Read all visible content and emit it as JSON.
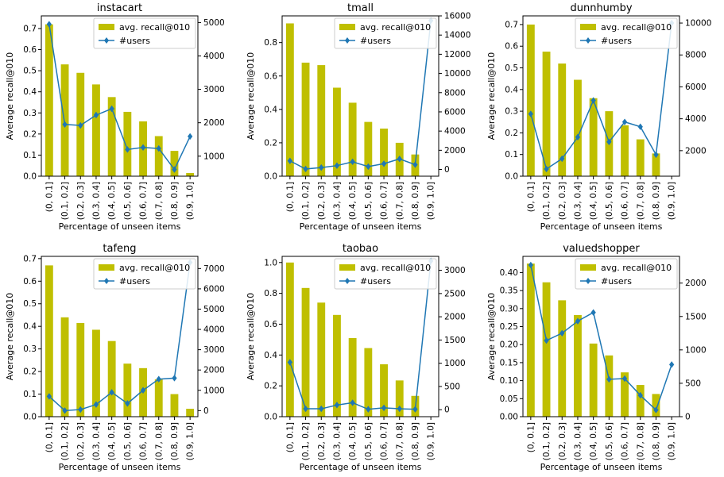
{
  "figure": {
    "xlabel": "Percentage of unseen items",
    "ylabel": "Average recall@010",
    "legend": {
      "bar_label": "avg. recall@010",
      "line_label": "#users",
      "placement": "top-right"
    },
    "colors": {
      "bar": "#bfbf00",
      "line": "#1f77b4",
      "frame": "#000000"
    }
  },
  "chart_data": [
    {
      "type": "bar",
      "title": "instacart",
      "categories": [
        "(0, 0.1]",
        "(0.1, 0.2]",
        "(0.2, 0.3]",
        "(0.3, 0.4]",
        "(0.4, 0.5]",
        "(0.5, 0.6]",
        "(0.6, 0.7]",
        "(0.7, 0.8]",
        "(0.8, 0.9]",
        "(0.9, 1.0]"
      ],
      "series": [
        {
          "name": "avg. recall@010",
          "type": "bar",
          "axis": "left",
          "values": [
            0.72,
            0.53,
            0.49,
            0.435,
            0.375,
            0.305,
            0.26,
            0.19,
            0.12,
            0.015
          ]
        },
        {
          "name": "#users",
          "type": "line",
          "axis": "right",
          "values": [
            4950,
            1950,
            1920,
            2230,
            2420,
            1200,
            1260,
            1230,
            600,
            1590
          ]
        }
      ],
      "ylim": [
        0,
        0.76
      ],
      "yticks": [
        0,
        0.1,
        0.2,
        0.3,
        0.4,
        0.5,
        0.6,
        0.7
      ],
      "ytick_labels": [
        "0.0",
        "0.1",
        "0.2",
        "0.3",
        "0.4",
        "0.5",
        "0.6",
        "0.7"
      ],
      "y2lim": [
        400,
        5200
      ],
      "y2ticks": [
        1000,
        2000,
        3000,
        4000,
        5000
      ],
      "y2tick_labels": [
        "1000",
        "2000",
        "3000",
        "4000",
        "5000"
      ]
    },
    {
      "type": "bar",
      "title": "tmall",
      "categories": [
        "(0, 0.1]",
        "(0.1, 0.2]",
        "(0.2, 0.3]",
        "(0.3, 0.4]",
        "(0.4, 0.5]",
        "(0.5, 0.6]",
        "(0.6, 0.7]",
        "(0.7, 0.8]",
        "(0.8, 0.9]",
        "(0.9, 1.0]"
      ],
      "series": [
        {
          "name": "avg. recall@010",
          "type": "bar",
          "axis": "left",
          "values": [
            0.915,
            0.68,
            0.665,
            0.53,
            0.44,
            0.325,
            0.285,
            0.2,
            0.13,
            0.0
          ]
        },
        {
          "name": "#users",
          "type": "line",
          "axis": "right",
          "values": [
            900,
            50,
            200,
            400,
            800,
            300,
            600,
            1100,
            500,
            15500
          ]
        }
      ],
      "ylim": [
        0,
        0.96
      ],
      "yticks": [
        0,
        0.2,
        0.4,
        0.6,
        0.8
      ],
      "ytick_labels": [
        "0.0",
        "0.2",
        "0.4",
        "0.6",
        "0.8"
      ],
      "y2lim": [
        -700,
        16000
      ],
      "y2ticks": [
        0,
        2000,
        4000,
        6000,
        8000,
        10000,
        12000,
        14000,
        16000
      ],
      "y2tick_labels": [
        "0",
        "2000",
        "4000",
        "6000",
        "8000",
        "10000",
        "12000",
        "14000",
        "16000"
      ]
    },
    {
      "type": "bar",
      "title": "dunnhumby",
      "categories": [
        "(0, 0.1]",
        "(0.1, 0.2]",
        "(0.2, 0.3]",
        "(0.3, 0.4]",
        "(0.4, 0.5]",
        "(0.5, 0.6]",
        "(0.6, 0.7]",
        "(0.7, 0.8]",
        "(0.8, 0.9]",
        "(0.9, 1.0]"
      ],
      "series": [
        {
          "name": "avg. recall@010",
          "type": "bar",
          "axis": "left",
          "values": [
            0.7,
            0.575,
            0.52,
            0.445,
            0.36,
            0.3,
            0.235,
            0.17,
            0.105,
            0.0
          ]
        },
        {
          "name": "#users",
          "type": "line",
          "axis": "right",
          "values": [
            4300,
            850,
            1500,
            2850,
            5150,
            2550,
            3800,
            3500,
            1750,
            10000
          ]
        }
      ],
      "ylim": [
        0,
        0.74
      ],
      "yticks": [
        0,
        0.1,
        0.2,
        0.3,
        0.4,
        0.5,
        0.6,
        0.7
      ],
      "ytick_labels": [
        "0.0",
        "0.1",
        "0.2",
        "0.3",
        "0.4",
        "0.5",
        "0.6",
        "0.7"
      ],
      "y2lim": [
        400,
        10450
      ],
      "y2ticks": [
        2000,
        4000,
        6000,
        8000,
        10000
      ],
      "y2tick_labels": [
        "2000",
        "4000",
        "6000",
        "8000",
        "10000"
      ]
    },
    {
      "type": "bar",
      "title": "tafeng",
      "categories": [
        "(0, 0.1]",
        "(0.1, 0.2]",
        "(0.2, 0.3]",
        "(0.3, 0.4]",
        "(0.4, 0.5]",
        "(0.5, 0.6]",
        "(0.6, 0.7]",
        "(0.7, 0.8]",
        "(0.8, 0.9]",
        "(0.9, 1.0]"
      ],
      "series": [
        {
          "name": "avg. recall@010",
          "type": "bar",
          "axis": "left",
          "values": [
            0.67,
            0.44,
            0.415,
            0.385,
            0.335,
            0.235,
            0.215,
            0.165,
            0.1,
            0.035
          ]
        },
        {
          "name": "#users",
          "type": "line",
          "axis": "right",
          "values": [
            700,
            0,
            50,
            300,
            900,
            350,
            1000,
            1550,
            1600,
            7300
          ]
        }
      ],
      "ylim": [
        0,
        0.71
      ],
      "yticks": [
        0,
        0.1,
        0.2,
        0.3,
        0.4,
        0.5,
        0.6,
        0.7
      ],
      "ytick_labels": [
        "0.0",
        "0.1",
        "0.2",
        "0.3",
        "0.4",
        "0.5",
        "0.6",
        "0.7"
      ],
      "y2lim": [
        -300,
        7600
      ],
      "y2ticks": [
        0,
        1000,
        2000,
        3000,
        4000,
        5000,
        6000,
        7000
      ],
      "y2tick_labels": [
        "0",
        "1000",
        "2000",
        "3000",
        "4000",
        "5000",
        "6000",
        "7000"
      ]
    },
    {
      "type": "bar",
      "title": "taobao",
      "categories": [
        "(0, 0.1]",
        "(0.1, 0.2]",
        "(0.2, 0.3]",
        "(0.3, 0.4]",
        "(0.4, 0.5]",
        "(0.5, 0.6]",
        "(0.6, 0.7]",
        "(0.7, 0.8]",
        "(0.8, 0.9]",
        "(0.9, 1.0]"
      ],
      "series": [
        {
          "name": "avg. recall@010",
          "type": "bar",
          "axis": "left",
          "values": [
            1.0,
            0.835,
            0.74,
            0.66,
            0.51,
            0.445,
            0.34,
            0.235,
            0.135,
            0.0
          ]
        },
        {
          "name": "#users",
          "type": "line",
          "axis": "right",
          "values": [
            1020,
            20,
            20,
            100,
            150,
            10,
            40,
            20,
            10,
            3200
          ]
        }
      ],
      "ylim": [
        0,
        1.04
      ],
      "yticks": [
        0,
        0.2,
        0.4,
        0.6,
        0.8,
        1.0
      ],
      "ytick_labels": [
        "0.0",
        "0.2",
        "0.4",
        "0.6",
        "0.8",
        "1.0"
      ],
      "y2lim": [
        -150,
        3300
      ],
      "y2ticks": [
        0,
        500,
        1000,
        1500,
        2000,
        2500,
        3000
      ],
      "y2tick_labels": [
        "0",
        "500",
        "1000",
        "1500",
        "2000",
        "2500",
        "3000"
      ]
    },
    {
      "type": "bar",
      "title": "valuedshopper",
      "categories": [
        "(0, 0.1]",
        "(0.1, 0.2]",
        "(0.2, 0.3]",
        "(0.3, 0.4]",
        "(0.4, 0.5]",
        "(0.5, 0.6]",
        "(0.6, 0.7]",
        "(0.7, 0.8]",
        "(0.8, 0.9]",
        "(0.9, 1.0]"
      ],
      "series": [
        {
          "name": "avg. recall@010",
          "type": "bar",
          "axis": "left",
          "values": [
            0.425,
            0.373,
            0.323,
            0.282,
            0.203,
            0.17,
            0.123,
            0.088,
            0.063,
            0.0
          ]
        },
        {
          "name": "#users",
          "type": "line",
          "axis": "right",
          "values": [
            2270,
            1140,
            1250,
            1430,
            1560,
            560,
            570,
            320,
            100,
            780
          ]
        }
      ],
      "ylim": [
        0,
        0.445
      ],
      "yticks": [
        0,
        0.05,
        0.1,
        0.15,
        0.2,
        0.25,
        0.3,
        0.35,
        0.4
      ],
      "ytick_labels": [
        "0.00",
        "0.05",
        "0.10",
        "0.15",
        "0.20",
        "0.25",
        "0.30",
        "0.35",
        "0.40"
      ],
      "y2lim": [
        0,
        2400
      ],
      "y2ticks": [
        0,
        500,
        1000,
        1500,
        2000
      ],
      "y2tick_labels": [
        "0",
        "500",
        "1000",
        "1500",
        "2000"
      ]
    }
  ]
}
